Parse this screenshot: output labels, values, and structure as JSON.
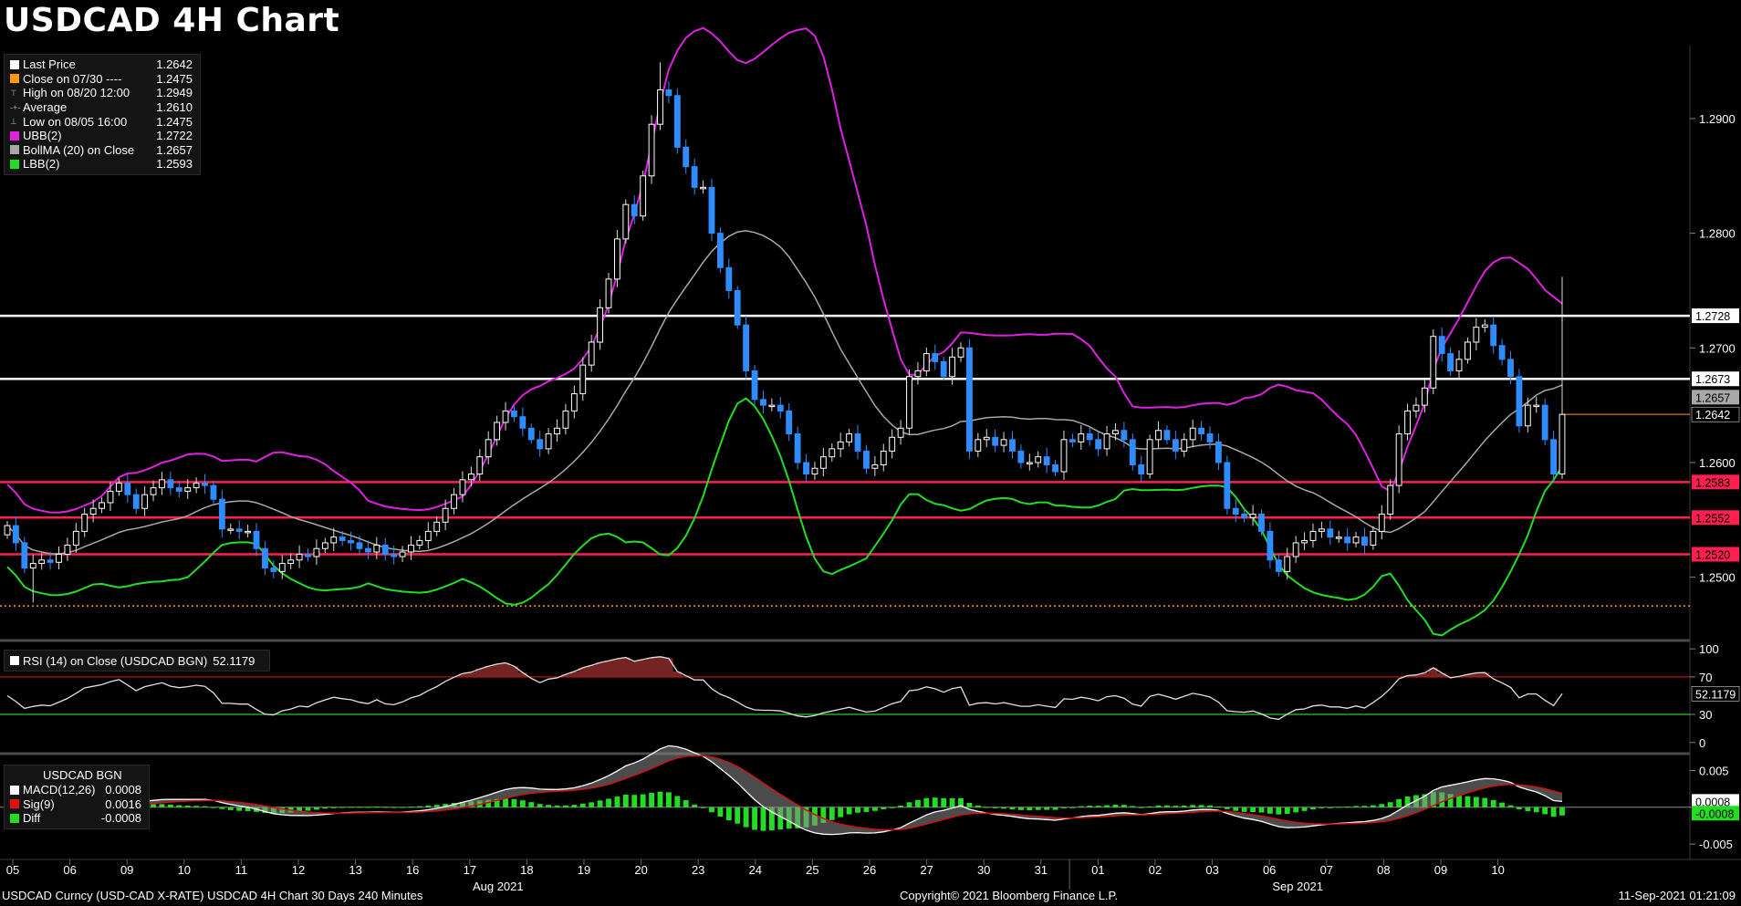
{
  "title": "USDCAD 4H Chart",
  "colors": {
    "up_body": "#000000",
    "up_border": "#ffffff",
    "down": "#2f8cff",
    "ubb": "#e020e0",
    "bollma": "#a8a8a8",
    "lbb": "#22dd22",
    "resistance": "#ffffff",
    "support": "#ff2050",
    "last_price": "#ff9900",
    "low_line": "#ff9900"
  },
  "legend": [
    {
      "label": "Last Price",
      "value": "1.2642",
      "color": "#ffffff"
    },
    {
      "label": "Close on 07/30 ----",
      "value": "1.2475",
      "color": "#ff9900"
    },
    {
      "label": "High on 08/20 12:00",
      "value": "1.2949",
      "color": "",
      "glyph": "⊤"
    },
    {
      "label": "Average",
      "value": "1.2610",
      "color": "",
      "glyph": "-+-"
    },
    {
      "label": "Low on 08/05 16:00",
      "value": "1.2475",
      "color": "",
      "glyph": "⊥"
    },
    {
      "label": "UBB(2)",
      "value": "1.2722",
      "color": "#e020e0"
    },
    {
      "label": "BollMA (20)  on Close",
      "value": "1.2657",
      "color": "#a8a8a8"
    },
    {
      "label": "LBB(2)",
      "value": "1.2593",
      "color": "#22dd22"
    }
  ],
  "rsi_legend": {
    "label": "RSI (14)  on Close (USDCAD BGN)",
    "value": "52.1179"
  },
  "macd_legend": {
    "title": "USDCAD BGN",
    "rows": [
      {
        "label": "MACD(12,26)",
        "value": "0.0008",
        "color": "#ffffff"
      },
      {
        "label": "Sig(9)",
        "value": "0.0016",
        "color": "#e01010"
      },
      {
        "label": "Diff",
        "value": "-0.0008",
        "color": "#22dd22"
      }
    ]
  },
  "axis_tags": [
    {
      "value": 1.2728,
      "label": "1.2728",
      "bg": "#ffffff",
      "fg": "#000000"
    },
    {
      "value": 1.2673,
      "label": "1.2673",
      "bg": "#ffffff",
      "fg": "#000000"
    },
    {
      "value": 1.2657,
      "label": "1.2657",
      "bg": "#a8a8a8",
      "fg": "#000000"
    },
    {
      "value": 1.2642,
      "label": "1.2642",
      "bg": "#000000",
      "fg": "#ffffff"
    },
    {
      "value": 1.2583,
      "label": "1.2583",
      "bg": "#ff2050",
      "fg": "#000000"
    },
    {
      "value": 1.2552,
      "label": "1.2552",
      "bg": "#ff2050",
      "fg": "#000000"
    },
    {
      "value": 1.252,
      "label": "1.2520",
      "bg": "#ff2050",
      "fg": "#000000"
    }
  ],
  "rsi_tag": "52.1179",
  "macd_tags": [
    {
      "value": 0.0008,
      "label": "0.0008",
      "bg": "#ffffff",
      "fg": "#000000"
    },
    {
      "value": -0.0008,
      "label": "-0.0008",
      "bg": "#22dd22",
      "fg": "#000000"
    }
  ],
  "footer": {
    "left": "USDCAD Curncy (USD-CAD X-RATE) USDCAD 4H Chart 30 Days 240 Minutes",
    "center": "Copyright© 2021 Bloomberg Finance L.P.",
    "right": "11-Sep-2021 01:21:09"
  },
  "chart_data": {
    "type": "candlestick",
    "title": "USDCAD 4H Chart",
    "price_axis": {
      "ticks": [
        1.25,
        1.26,
        1.27,
        1.28,
        1.29
      ],
      "tick_labels": [
        "1.2500",
        "1.2600",
        "1.2700",
        "1.2800",
        "1.2900"
      ],
      "range": [
        1.2448,
        1.2962
      ]
    },
    "rsi_axis": {
      "ticks": [
        0,
        30,
        70,
        100
      ],
      "tick_labels": [
        "0",
        "30",
        "70",
        "100"
      ],
      "range": [
        -8,
        105
      ],
      "overbought": 70,
      "oversold": 30
    },
    "macd_axis": {
      "ticks": [
        0.005,
        0,
        -0.005
      ],
      "tick_labels": [
        "0.005",
        "0",
        "-0.005"
      ],
      "range": [
        -0.0066,
        0.0068
      ]
    },
    "dates": [
      "05",
      "06",
      "09",
      "10",
      "11",
      "12",
      "13",
      "16",
      "17",
      "18",
      "19",
      "20",
      "23",
      "24",
      "25",
      "26",
      "27",
      "30",
      "31",
      "01",
      "02",
      "03",
      "06",
      "07",
      "08",
      "09",
      "10"
    ],
    "month_labels": [
      {
        "label": "Aug 2021",
        "after": 8
      },
      {
        "label": "Sep 2021",
        "after": 22
      }
    ],
    "horizontal_lines": {
      "resistance": [
        1.2728,
        1.2673
      ],
      "support": [
        1.2583,
        1.2552,
        1.252
      ],
      "low": 1.2475,
      "last_price": 1.2642
    },
    "closes": [
      1.2545,
      1.253,
      1.2508,
      1.2512,
      1.2515,
      1.2513,
      1.252,
      1.2528,
      1.254,
      1.2555,
      1.256,
      1.2565,
      1.2575,
      1.2582,
      1.2572,
      1.256,
      1.2572,
      1.2578,
      1.2585,
      1.2578,
      1.2575,
      1.2578,
      1.2582,
      1.258,
      1.2568,
      1.2542,
      1.2542,
      1.254,
      1.254,
      1.2525,
      1.2508,
      1.2505,
      1.2512,
      1.2515,
      1.252,
      1.2518,
      1.2525,
      1.253,
      1.2535,
      1.2532,
      1.253,
      1.2525,
      1.2522,
      1.2528,
      1.252,
      1.2518,
      1.2522,
      1.2528,
      1.2532,
      1.254,
      1.2548,
      1.256,
      1.2572,
      1.2585,
      1.259,
      1.2605,
      1.262,
      1.2635,
      1.2645,
      1.264,
      1.263,
      1.262,
      1.2612,
      1.2625,
      1.263,
      1.2645,
      1.266,
      1.2685,
      1.2705,
      1.2735,
      1.276,
      1.2795,
      1.2825,
      1.2815,
      1.285,
      1.2895,
      1.2925,
      1.292,
      1.2875,
      1.2858,
      1.284,
      1.284,
      1.28,
      1.277,
      1.275,
      1.272,
      1.268,
      1.2655,
      1.265,
      1.265,
      1.2645,
      1.2625,
      1.26,
      1.259,
      1.2595,
      1.2605,
      1.2612,
      1.2618,
      1.2625,
      1.261,
      1.2595,
      1.2598,
      1.261,
      1.2622,
      1.263,
      1.2675,
      1.268,
      1.2695,
      1.2688,
      1.2675,
      1.2692,
      1.27,
      1.261,
      1.262,
      1.2622,
      1.2615,
      1.262,
      1.261,
      1.26,
      1.26,
      1.2605,
      1.2598,
      1.2592,
      1.262,
      1.2618,
      1.2625,
      1.262,
      1.2612,
      1.2625,
      1.2628,
      1.262,
      1.2598,
      1.259,
      1.262,
      1.2628,
      1.262,
      1.261,
      1.262,
      1.263,
      1.2625,
      1.2618,
      1.26,
      1.256,
      1.2555,
      1.2552,
      1.2555,
      1.254,
      1.2515,
      1.2505,
      1.2518,
      1.253,
      1.2532,
      1.254,
      1.2542,
      1.2535,
      1.2535,
      1.253,
      1.2535,
      1.2528,
      1.254,
      1.2555,
      1.258,
      1.2625,
      1.2645,
      1.265,
      1.2665,
      1.271,
      1.2695,
      1.268,
      1.269,
      1.2705,
      1.2718,
      1.272,
      1.2702,
      1.269,
      1.2675,
      1.2632,
      1.265,
      1.265,
      1.262,
      1.259,
      1.2642
    ]
  }
}
